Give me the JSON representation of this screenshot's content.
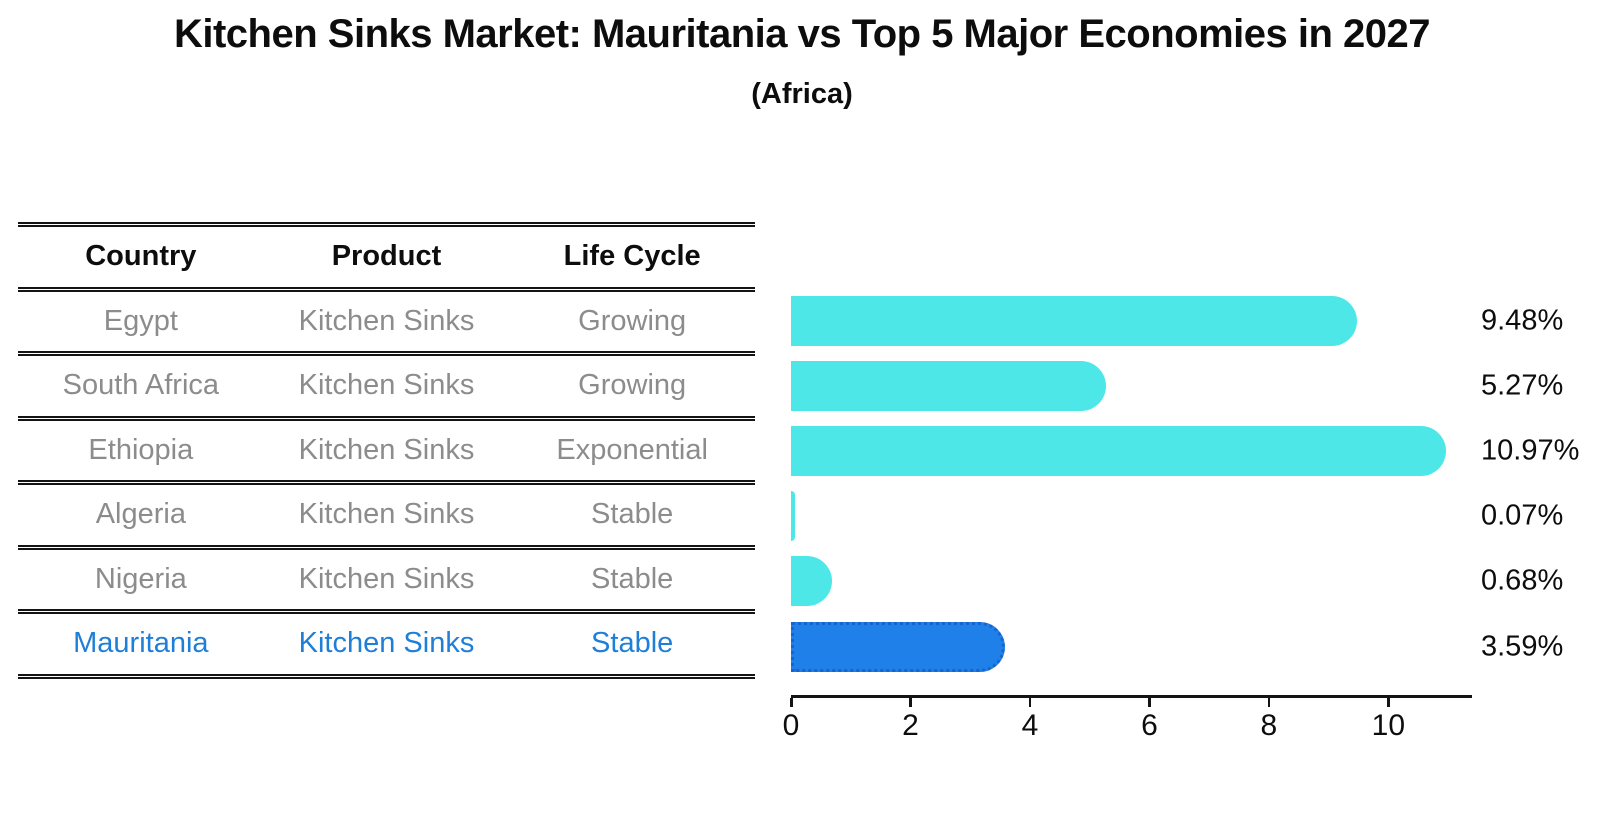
{
  "title": "Kitchen Sinks Market: Mauritania vs Top 5 Major Economies in 2027",
  "subtitle": "(Africa)",
  "table": {
    "headers": [
      "Country",
      "Product",
      "Life Cycle"
    ],
    "rows": [
      {
        "country": "Egypt",
        "product": "Kitchen Sinks",
        "life_cycle": "Growing",
        "highlight": false
      },
      {
        "country": "South Africa",
        "product": "Kitchen Sinks",
        "life_cycle": "Growing",
        "highlight": false
      },
      {
        "country": "Ethiopia",
        "product": "Kitchen Sinks",
        "life_cycle": "Exponential",
        "highlight": false
      },
      {
        "country": "Algeria",
        "product": "Kitchen Sinks",
        "life_cycle": "Stable",
        "highlight": false
      },
      {
        "country": "Nigeria",
        "product": "Kitchen Sinks",
        "life_cycle": "Stable",
        "highlight": false
      },
      {
        "country": "Mauritania",
        "product": "Kitchen Sinks",
        "life_cycle": "Stable",
        "highlight": true
      }
    ]
  },
  "chart_data": {
    "type": "bar",
    "orientation": "horizontal",
    "title": "Kitchen Sinks Market: Mauritania vs Top 5 Major Economies in 2027",
    "subtitle": "(Africa)",
    "categories": [
      "Egypt",
      "South Africa",
      "Ethiopia",
      "Algeria",
      "Nigeria",
      "Mauritania"
    ],
    "values": [
      9.48,
      5.27,
      10.97,
      0.07,
      0.68,
      3.59
    ],
    "value_labels": [
      "9.48%",
      "5.27%",
      "10.97%",
      "0.07%",
      "0.68%",
      "3.59%"
    ],
    "xlabel": "",
    "ylabel": "",
    "x_ticks": [
      0,
      2,
      4,
      6,
      8,
      10
    ],
    "xlim": [
      0,
      11.4
    ],
    "grid": false,
    "legend": false,
    "highlight_index": 5,
    "bar_color": "#4de7e7",
    "highlight_color": "#1e80e8",
    "highlight_border_color": "#1565cc",
    "highlight_text_color": "#1f7fd8"
  }
}
